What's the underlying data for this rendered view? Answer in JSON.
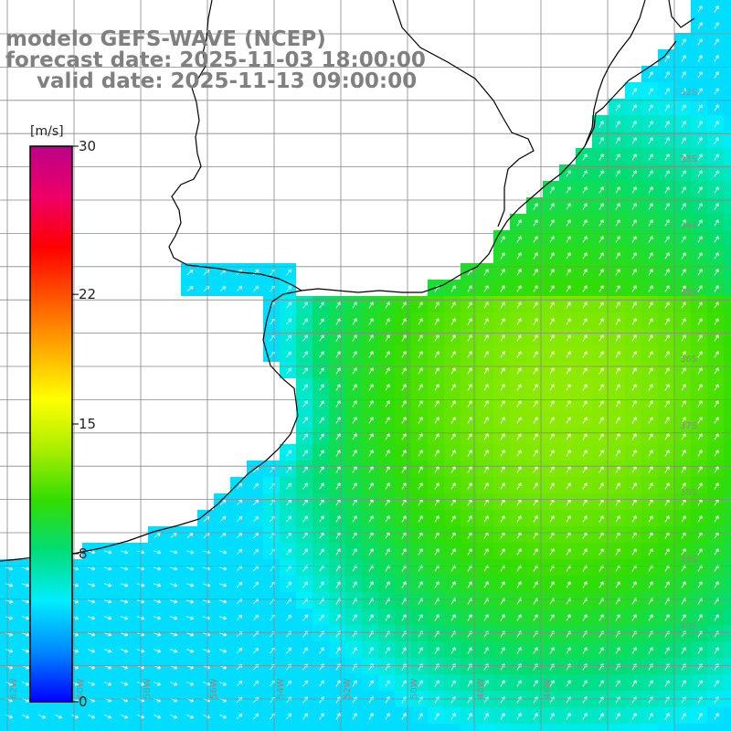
{
  "title": {
    "line1": "modelo GEFS-WAVE (NCEP)",
    "line2": "forecast date: 2025-11-03 18:00:00",
    "line3": "valid date: 2025-11-13 09:00:00"
  },
  "colorbar": {
    "unit": "[m/s]",
    "ticks": [
      "30",
      "22",
      "15",
      "8",
      "0"
    ],
    "tick_values": [
      30,
      22,
      15,
      8,
      0
    ],
    "range": [
      0,
      30
    ],
    "colors": [
      "#0000ff",
      "#0088ff",
      "#00eeff",
      "#00dd77",
      "#33dd00",
      "#aaee00",
      "#ffff00",
      "#ffaa00",
      "#ff5500",
      "#ff0000",
      "#ee0066",
      "#bb0088"
    ]
  },
  "grid_labels": {
    "lat": [
      "32S",
      "33S",
      "34S",
      "35S",
      "36S",
      "37S",
      "38S",
      "39S",
      "40S"
    ],
    "lon": [
      "62W",
      "60W",
      "58W",
      "56W",
      "54W",
      "52W",
      "50W",
      "48W",
      "46W"
    ]
  },
  "map": {
    "variable": "wind speed",
    "arrow_direction": "north-east",
    "ocean_speed_typical": 9,
    "ocean_speed_max": 13,
    "coastal_speed_min": 5,
    "land_color": "#ffffff",
    "coastline_color": "#000000",
    "grid_color": "#888888",
    "arrow_color": "#ffffff"
  }
}
